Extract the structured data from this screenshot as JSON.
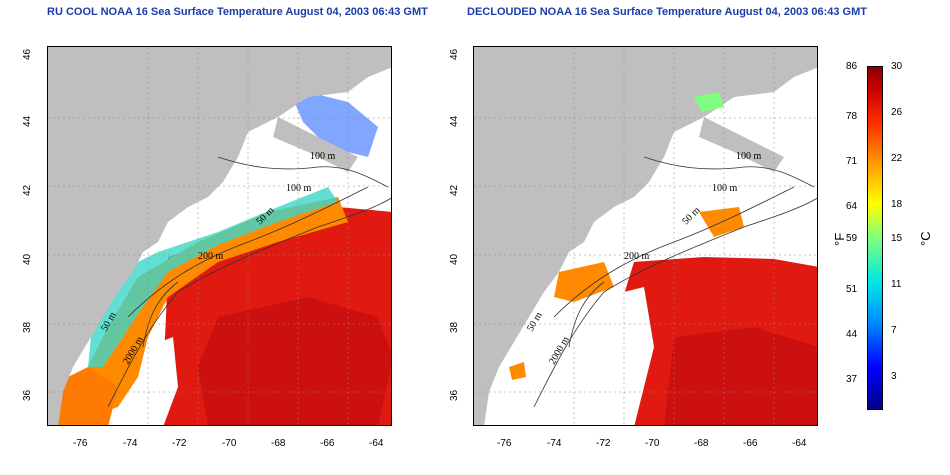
{
  "titles": {
    "left": "RU COOL NOAA 16 Sea Surface Temperature August 04, 2003 06:43 GMT",
    "right": "DECLOUDED NOAA 16 Sea Surface Temperature August 04, 2003 06:43 GMT"
  },
  "x_ticks": [
    "-76",
    "-74",
    "-72",
    "-70",
    "-68",
    "-66",
    "-64"
  ],
  "y_ticks": [
    "46",
    "44",
    "42",
    "40",
    "38",
    "36"
  ],
  "contour_labels": [
    "100 m",
    "100 m",
    "50 m",
    "200 m",
    "50 m",
    "2000 m"
  ],
  "colorbar": {
    "fahrenheit_ticks": [
      "86",
      "78",
      "71",
      "64",
      "59",
      "51",
      "44",
      "37"
    ],
    "celsius_ticks": [
      "30",
      "26",
      "22",
      "18",
      "15",
      "11",
      "7",
      "3"
    ],
    "unit_f": "°F",
    "unit_c": "°C"
  },
  "colors": {
    "land": "#bfbfbf",
    "warm": "#e01a10",
    "hot": "#c80f0f",
    "mid": "#ff8a00",
    "cool": "#3bd6c8",
    "cold": "#1a5cff",
    "title": "#1a3ca8"
  }
}
